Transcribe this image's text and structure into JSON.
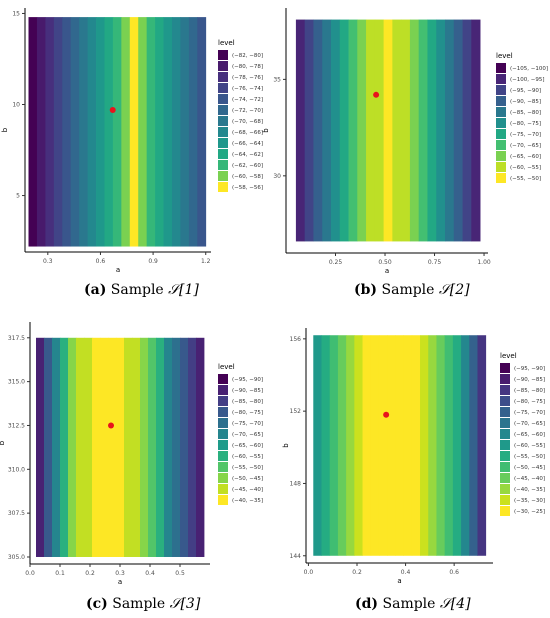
{
  "figure": {
    "captions": [
      {
        "tag": "(a)",
        "text": "Sample",
        "math": "𝒮[1]"
      },
      {
        "tag": "(b)",
        "text": "Sample",
        "math": "𝒮[2]"
      },
      {
        "tag": "(c)",
        "text": "Sample",
        "math": "𝒮[3]"
      },
      {
        "tag": "(d)",
        "text": "Sample",
        "math": "𝒮[4]"
      }
    ]
  },
  "chart_data": [
    {
      "type": "heatmap",
      "xlabel": "a",
      "ylabel": "b",
      "xlim": [
        0.17,
        1.23
      ],
      "ylim": [
        1.9,
        15.3
      ],
      "xticks": [
        {
          "v": 0.3,
          "label": "0.3"
        },
        {
          "v": 0.6,
          "label": "0.6"
        },
        {
          "v": 0.9,
          "label": "0.9"
        },
        {
          "v": 1.2,
          "label": "1.2"
        }
      ],
      "yticks": [
        {
          "v": 5,
          "label": "5"
        },
        {
          "v": 10,
          "label": "10"
        },
        {
          "v": 15,
          "label": "15"
        }
      ],
      "x_range": [
        0.19,
        1.2
      ],
      "y_range": [
        2.2,
        14.8
      ],
      "legend_title": "level",
      "legend": [
        "(−82, −80]",
        "(−80, −78]",
        "(−78, −76]",
        "(−76, −74]",
        "(−74, −72]",
        "(−72, −70]",
        "(−70, −68]",
        "(−68, −66]",
        "(−66, −64]",
        "(−64, −62]",
        "(−62, −60]",
        "(−60, −58]",
        "(−58, −56]"
      ],
      "colors": [
        "#440154",
        "#481a6c",
        "#472f7d",
        "#414487",
        "#39568c",
        "#31688e",
        "#2a788e",
        "#23888e",
        "#1f988b",
        "#22a884",
        "#35b779",
        "#7ad151",
        "#fde725"
      ],
      "columns_level_index": [
        0,
        1,
        2,
        3,
        4,
        5,
        6,
        7,
        8,
        9,
        10,
        11,
        12,
        11,
        10,
        9,
        8,
        7,
        6,
        5,
        4
      ],
      "point": {
        "a": 0.67,
        "b": 9.7
      }
    },
    {
      "type": "heatmap",
      "xlabel": "a",
      "ylabel": "b",
      "xlim": [
        0.0,
        1.02
      ],
      "ylim": [
        26.0,
        38.7
      ],
      "xticks": [
        {
          "v": 0.25,
          "label": "0.25"
        },
        {
          "v": 0.5,
          "label": "0.50"
        },
        {
          "v": 0.75,
          "label": "0.75"
        },
        {
          "v": 1.0,
          "label": "1.00"
        }
      ],
      "yticks": [
        {
          "v": 30,
          "label": "30"
        },
        {
          "v": 35,
          "label": "35"
        }
      ],
      "x_range": [
        0.05,
        0.98
      ],
      "y_range": [
        26.6,
        38.1
      ],
      "legend_title": "level",
      "legend": [
        "(−105, −100]",
        "(−100, −95]",
        "(−95, −90]",
        "(−90, −85]",
        "(−85, −80]",
        "(−80, −75]",
        "(−75, −70]",
        "(−70, −65]",
        "(−65, −60]",
        "(−60, −55]",
        "(−55, −50]"
      ],
      "colors": [
        "#440154",
        "#482576",
        "#414487",
        "#35608d",
        "#2a788e",
        "#21908d",
        "#22a884",
        "#43bf71",
        "#7ad151",
        "#bddf26",
        "#fde725"
      ],
      "columns_level_index": [
        1,
        2,
        3,
        4,
        5,
        6,
        7,
        8,
        9,
        9,
        10,
        9,
        9,
        8,
        7,
        6,
        5,
        4,
        3,
        2,
        1
      ],
      "point": {
        "a": 0.455,
        "b": 34.2
      }
    },
    {
      "type": "heatmap",
      "xlabel": "a",
      "ylabel": "b",
      "xlim": [
        0.0,
        0.6
      ],
      "ylim": [
        304.6,
        318.4
      ],
      "xticks": [
        {
          "v": 0.0,
          "label": "0.0"
        },
        {
          "v": 0.1,
          "label": "0.1"
        },
        {
          "v": 0.2,
          "label": "0.2"
        },
        {
          "v": 0.3,
          "label": "0.3"
        },
        {
          "v": 0.4,
          "label": "0.4"
        },
        {
          "v": 0.5,
          "label": "0.5"
        }
      ],
      "yticks": [
        {
          "v": 305,
          "label": "305.0"
        },
        {
          "v": 307.5,
          "label": "307.5"
        },
        {
          "v": 310,
          "label": "310.0"
        },
        {
          "v": 312.5,
          "label": "312.5"
        },
        {
          "v": 315,
          "label": "315.0"
        },
        {
          "v": 317.5,
          "label": "317.5"
        }
      ],
      "x_range": [
        0.02,
        0.58
      ],
      "y_range": [
        305.0,
        317.5
      ],
      "legend_title": "level",
      "legend": [
        "(−95, −90]",
        "(−90, −85]",
        "(−85, −80]",
        "(−80, −75]",
        "(−75, −70]",
        "(−70, −65]",
        "(−65, −60]",
        "(−60, −55]",
        "(−55, −50]",
        "(−50, −45]",
        "(−45, −40]",
        "(−40, −35]"
      ],
      "colors": [
        "#440154",
        "#482173",
        "#433e85",
        "#38598c",
        "#2d708e",
        "#25858e",
        "#1e9b8a",
        "#2ab07f",
        "#52c569",
        "#86d549",
        "#c2df23",
        "#fde725"
      ],
      "columns_level_index": [
        1,
        3,
        5,
        7,
        9,
        10,
        10,
        11,
        11,
        11,
        11,
        10,
        10,
        9,
        8,
        7,
        5,
        4,
        3,
        2,
        1
      ],
      "point": {
        "a": 0.27,
        "b": 312.5
      }
    },
    {
      "type": "heatmap",
      "xlabel": "a",
      "ylabel": "b",
      "xlim": [
        -0.01,
        0.76
      ],
      "ylim": [
        143.6,
        156.6
      ],
      "xticks": [
        {
          "v": 0.0,
          "label": "0.0"
        },
        {
          "v": 0.2,
          "label": "0.2"
        },
        {
          "v": 0.4,
          "label": "0.4"
        },
        {
          "v": 0.6,
          "label": "0.6"
        }
      ],
      "yticks": [
        {
          "v": 144,
          "label": "144"
        },
        {
          "v": 148,
          "label": "148"
        },
        {
          "v": 152,
          "label": "152"
        },
        {
          "v": 156,
          "label": "156"
        }
      ],
      "x_range": [
        0.02,
        0.73
      ],
      "y_range": [
        144.0,
        156.2
      ],
      "legend_title": "level",
      "legend": [
        "(−95, −90]",
        "(−90, −85]",
        "(−85, −80]",
        "(−80, −75]",
        "(−75, −70]",
        "(−70, −65]",
        "(−65, −60]",
        "(−60, −55]",
        "(−55, −50]",
        "(−50, −45]",
        "(−45, −40]",
        "(−40, −35]",
        "(−35, −30]",
        "(−30, −25]"
      ],
      "colors": [
        "#440154",
        "#481c6e",
        "#453581",
        "#3d4d8a",
        "#34618d",
        "#2b748e",
        "#24878e",
        "#1f998a",
        "#25ac82",
        "#40bd72",
        "#67cc5c",
        "#97d83f",
        "#cbe11e",
        "#fde725"
      ],
      "columns_level_index": [
        7,
        8,
        9,
        10,
        11,
        12,
        13,
        13,
        13,
        13,
        13,
        13,
        13,
        12,
        11,
        10,
        9,
        8,
        6,
        4,
        2
      ],
      "point": {
        "a": 0.32,
        "b": 151.8
      }
    }
  ]
}
